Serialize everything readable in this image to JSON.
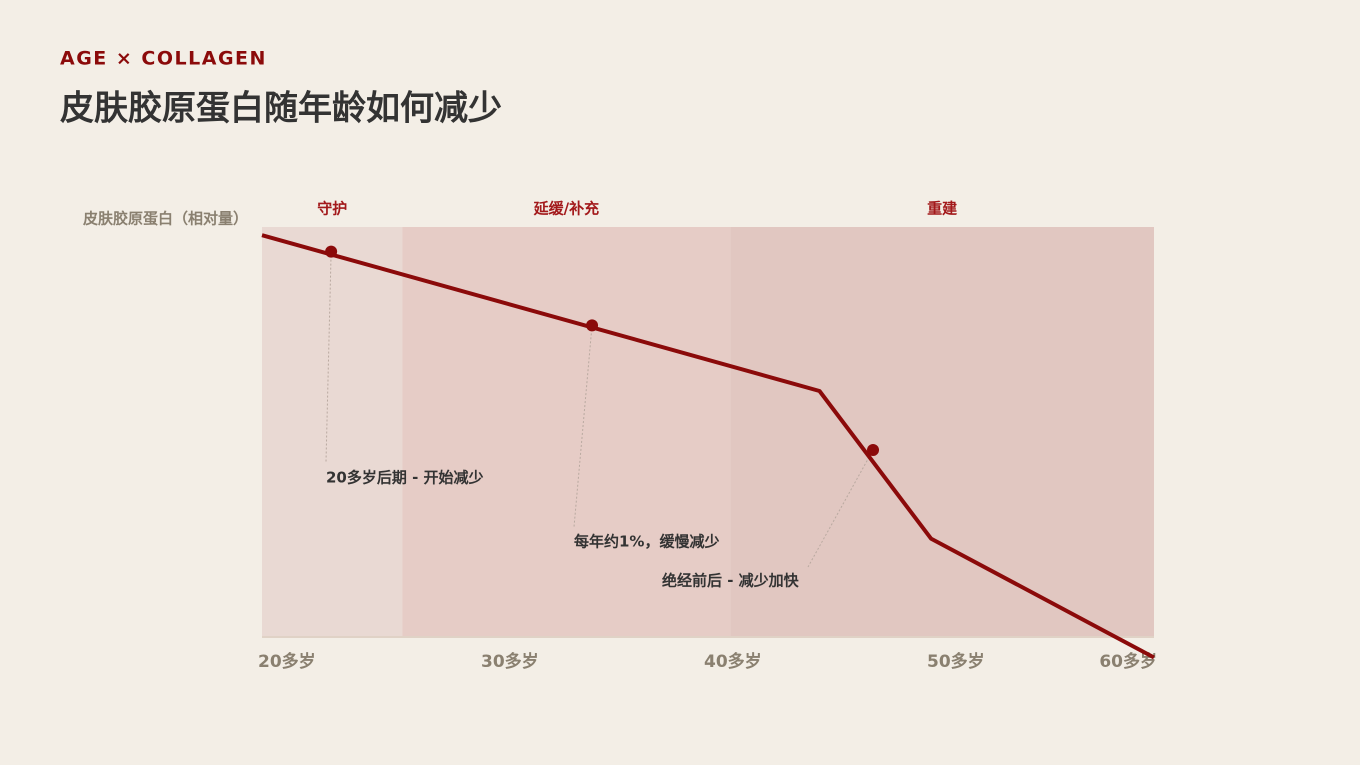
{
  "header": {
    "eyebrow": "AGE × COLLAGEN",
    "title": "皮肤胶原蛋白随年龄如何减少"
  },
  "chart_data": {
    "type": "line",
    "y_label": "皮肤胶原蛋白（相对量）",
    "x": [
      20,
      45,
      50,
      60
    ],
    "series": [
      {
        "color": "#8b0a0a",
        "values": [
          98,
          60,
          24,
          -5
        ]
      }
    ],
    "xlim": [
      20,
      60
    ],
    "xticks": [
      {
        "value": 20,
        "label": "20多岁"
      },
      {
        "value": 30,
        "label": "30多岁"
      },
      {
        "value": 40,
        "label": "40多岁"
      },
      {
        "value": 50,
        "label": "50多岁"
      },
      {
        "value": 60,
        "label": "60多岁"
      }
    ],
    "ylim": [
      0,
      100
    ],
    "bands": [
      {
        "name": "守护",
        "start": 20,
        "end": 26.3,
        "color": "#e9d9d3"
      },
      {
        "name": "延缓/补充",
        "start": 26.3,
        "end": 41,
        "color": "#e6ccc6"
      },
      {
        "name": "重建",
        "start": 41,
        "end": 60,
        "color": "#e1c7c1"
      }
    ],
    "annotations": [
      {
        "x": 23.1,
        "y": 94,
        "text": "20多岁后期 - 开始减少"
      },
      {
        "x": 34.8,
        "y": 76,
        "text": "每年约1%，缓慢减少"
      },
      {
        "x": 47.4,
        "y": 45.6,
        "text": "绝经前后 - 减少加快"
      }
    ]
  }
}
